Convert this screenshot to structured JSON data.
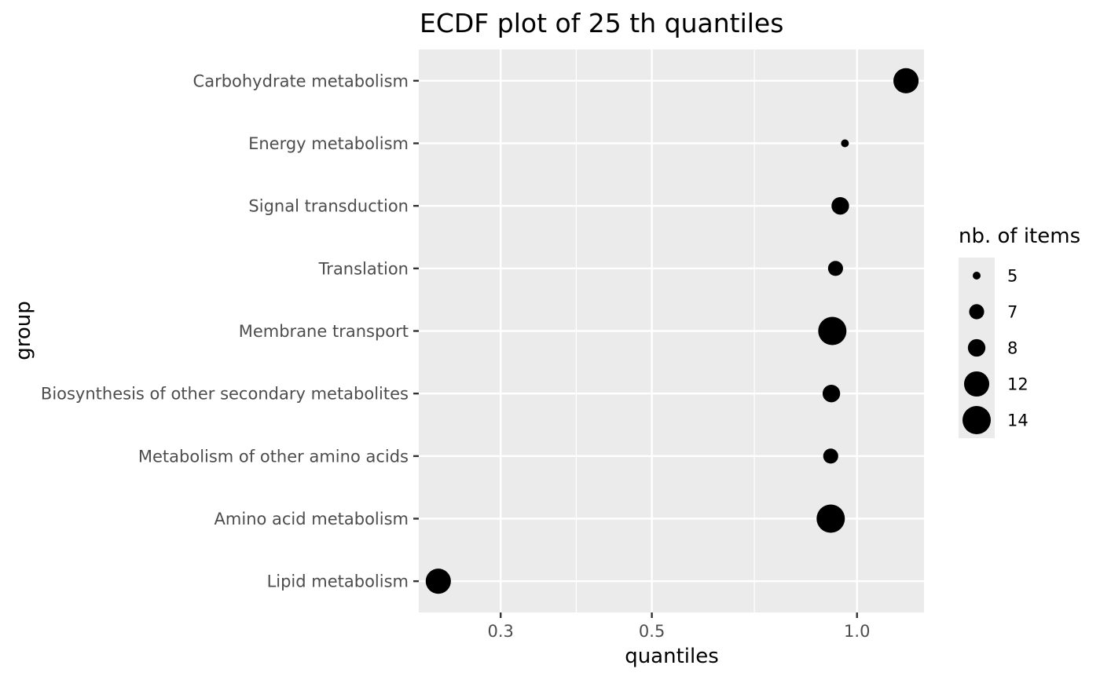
{
  "chart_data": {
    "type": "scatter",
    "title": "ECDF plot of  25 th quantiles",
    "xlabel": "quantiles",
    "ylabel": "group",
    "x_scale": "log10",
    "xlim": [
      0.2275,
      1.254
    ],
    "x_ticks": [
      {
        "value": 0.3,
        "label": "0.3"
      },
      {
        "value": 0.5,
        "label": "0.5"
      },
      {
        "value": 1.0,
        "label": "1.0"
      }
    ],
    "x_minor_ticks": [
      0.3873,
      0.7071
    ],
    "grid": true,
    "categories": [
      "Carbohydrate metabolism",
      "Energy metabolism",
      "Signal transduction",
      "Translation",
      "Membrane transport",
      "Biosynthesis of other secondary metabolites",
      "Metabolism of other amino acids",
      "Amino acid metabolism",
      "Lipid metabolism"
    ],
    "points": [
      {
        "group": "Carbohydrate metabolism",
        "x": 1.18,
        "size": 12
      },
      {
        "group": "Energy metabolism",
        "x": 0.96,
        "size": 5
      },
      {
        "group": "Signal transduction",
        "x": 0.945,
        "size": 8
      },
      {
        "group": "Translation",
        "x": 0.93,
        "size": 7
      },
      {
        "group": "Membrane transport",
        "x": 0.92,
        "size": 14
      },
      {
        "group": "Biosynthesis of other secondary metabolites",
        "x": 0.917,
        "size": 8
      },
      {
        "group": "Metabolism of other amino acids",
        "x": 0.915,
        "size": 7
      },
      {
        "group": "Amino acid metabolism",
        "x": 0.915,
        "size": 14
      },
      {
        "group": "Lipid metabolism",
        "x": 0.243,
        "size": 12
      }
    ],
    "legend": {
      "title": "nb. of items",
      "position": "right",
      "entries": [
        {
          "label": "5",
          "size": 5
        },
        {
          "label": "7",
          "size": 7
        },
        {
          "label": "8",
          "size": 8
        },
        {
          "label": "12",
          "size": 12
        },
        {
          "label": "14",
          "size": 14
        }
      ]
    },
    "colors": {
      "panel": "#ebebeb",
      "grid": "#ffffff",
      "point": "#000000",
      "tick_text": "#4d4d4d",
      "tick_mark": "#333333"
    }
  }
}
